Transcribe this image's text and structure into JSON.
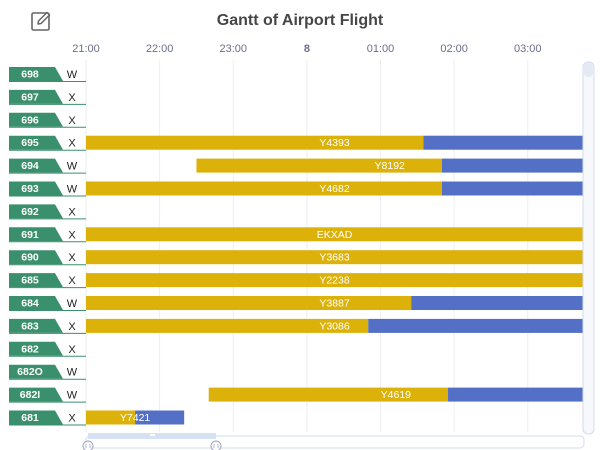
{
  "toolbar": {
    "edit_icon": "edit-icon"
  },
  "colors": {
    "gate": "#3a8f6c",
    "bar_primary": "#dcb20a",
    "bar_secondary": "#5470c6",
    "grid": "#eeeeee",
    "tick_text": "#6b6f8a"
  },
  "chart_data": {
    "type": "gantt",
    "title": "Gantt of Airport Flight",
    "x_axis": {
      "type": "time",
      "ticks": [
        "21:00",
        "22:00",
        "23:00",
        "8",
        "01:00",
        "02:00",
        "03:00"
      ],
      "bold_ticks": [
        "8"
      ],
      "range": [
        "21:00",
        "03:45"
      ]
    },
    "rows": [
      {
        "gate": "698",
        "type": "W",
        "bars": []
      },
      {
        "gate": "697",
        "type": "X",
        "bars": []
      },
      {
        "gate": "696",
        "type": "X",
        "bars": []
      },
      {
        "gate": "695",
        "type": "X",
        "bars": [
          {
            "label": "Y4393",
            "start": "21:00",
            "split": "01:35",
            "end": "03:45"
          }
        ]
      },
      {
        "gate": "694",
        "type": "W",
        "bars": [
          {
            "label": "Y8192",
            "start": "22:30",
            "split": "01:50",
            "end": "03:45"
          }
        ]
      },
      {
        "gate": "693",
        "type": "W",
        "bars": [
          {
            "label": "Y4682",
            "start": "21:00",
            "split": "01:50",
            "end": "03:45"
          }
        ]
      },
      {
        "gate": "692",
        "type": "X",
        "bars": []
      },
      {
        "gate": "691",
        "type": "X",
        "bars": [
          {
            "label": "EKXAD",
            "start": "21:00",
            "split": "03:45",
            "end": "03:45"
          }
        ]
      },
      {
        "gate": "690",
        "type": "X",
        "bars": [
          {
            "label": "Y3683",
            "start": "21:00",
            "split": "03:45",
            "end": "03:45"
          }
        ]
      },
      {
        "gate": "685",
        "type": "X",
        "bars": [
          {
            "label": "Y2238",
            "start": "21:00",
            "split": "03:45",
            "end": "03:45"
          }
        ]
      },
      {
        "gate": "684",
        "type": "W",
        "bars": [
          {
            "label": "Y3887",
            "start": "21:00",
            "split": "01:25",
            "end": "03:45"
          }
        ]
      },
      {
        "gate": "683",
        "type": "X",
        "bars": [
          {
            "label": "Y3086",
            "start": "21:00",
            "split": "00:50",
            "end": "03:45"
          }
        ]
      },
      {
        "gate": "682",
        "type": "X",
        "bars": []
      },
      {
        "gate": "682O",
        "type": "W",
        "bars": []
      },
      {
        "gate": "682I",
        "type": "W",
        "bars": [
          {
            "label": "Y4619",
            "start": "22:40",
            "split": "01:55",
            "end": "03:45"
          }
        ]
      },
      {
        "gate": "681",
        "type": "X",
        "bars": [
          {
            "label": "Y7421",
            "start": "21:00",
            "split": "21:40",
            "end": "22:20"
          }
        ]
      }
    ]
  }
}
